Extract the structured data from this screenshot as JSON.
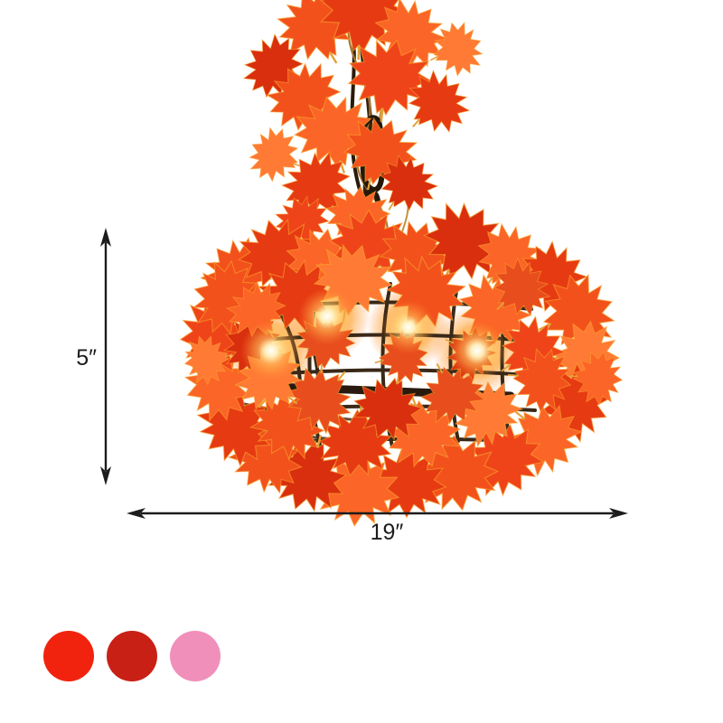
{
  "page": {
    "background": "#ffffff",
    "product": {
      "name": "maple-leaf-cage-chandelier",
      "description": "Wire cage pendant light wrapped in red-orange maple leaves with lit bulbs, hanging from a leaf-wrapped chain"
    },
    "dimensions": {
      "height": {
        "value": "5″"
      },
      "width": {
        "value": "19″"
      }
    },
    "swatches": [
      {
        "name": "red",
        "color": "#f2230e"
      },
      {
        "name": "dark-red",
        "color": "#c92016"
      },
      {
        "name": "pink",
        "color": "#f08fba"
      }
    ],
    "style": {
      "annotation_color": "#1c1c1c",
      "leaf_palette": [
        "#e63a12",
        "#f2511c",
        "#fb6527",
        "#d92f0e",
        "#ff7a35",
        "#ef4419",
        "#e84d1d"
      ],
      "cage_color": "#3a2817",
      "chain_color": "#241708",
      "glow_core": "#fffdf0",
      "glow_mid": "#ffe093",
      "glow_edge": "#ff8a33"
    }
  }
}
